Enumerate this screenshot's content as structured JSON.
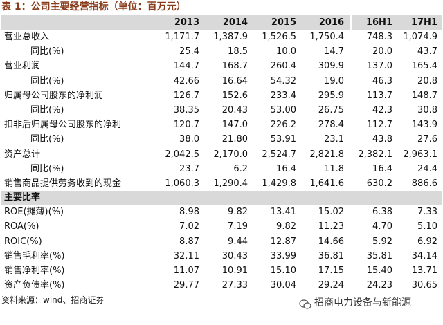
{
  "title": "表 1：公司主要经营指标（单位：百万元）",
  "table": {
    "header": [
      "2013",
      "2014",
      "2015",
      "2016",
      "16H1",
      "17H1"
    ],
    "rows": [
      {
        "label": "营业总收入",
        "values": [
          "1,171.7",
          "1,387.9",
          "1,526.5",
          "1,750.4",
          "748.3",
          "1,074.9"
        ],
        "children": [
          {
            "label": "同比(%)",
            "values": [
              "25.4",
              "18.5",
              "10.0",
              "14.7",
              "20.0",
              "43.7"
            ]
          }
        ]
      },
      {
        "label": "营业利润",
        "values": [
          "144.7",
          "168.7",
          "260.4",
          "309.9",
          "137.0",
          "165.4"
        ],
        "children": [
          {
            "label": "同比(%)",
            "values": [
              "42.66",
              "16.64",
              "54.32",
              "19.0",
              "46.3",
              "20.8"
            ]
          }
        ]
      },
      {
        "label": "归属母公司股东的净利润",
        "values": [
          "126.7",
          "152.6",
          "233.4",
          "295.9",
          "113.7",
          "148.7"
        ],
        "children": [
          {
            "label": "同比(%)",
            "values": [
              "38.35",
              "20.43",
              "53.00",
              "26.75",
              "42.3",
              "30.8"
            ]
          }
        ]
      },
      {
        "label": "扣非后归属母公司股东的净利",
        "values": [
          "120.7",
          "147.0",
          "226.2",
          "278.4",
          "112.7",
          "143.9"
        ],
        "children": [
          {
            "label": "同比(%)",
            "values": [
              "38.0",
              "21.80",
              "53.91",
              "23.1",
              "43.8",
              "27.6"
            ]
          }
        ]
      },
      {
        "label": "资产总计",
        "values": [
          "2,042.5",
          "2,170.0",
          "2,524.7",
          "2,821.8",
          "2,382.1",
          "2,963.1"
        ],
        "children": [
          {
            "label": "同比(%)",
            "values": [
              "23.7",
              "6.2",
              "16.4",
              "11.8",
              "16.4",
              "24.4"
            ]
          }
        ]
      },
      {
        "label": "销售商品提供劳务收到的现金",
        "values": [
          "1,060.3",
          "1,290.4",
          "1,429.8",
          "1,641.6",
          "630.2",
          "886.6"
        ],
        "children": []
      }
    ],
    "section": {
      "title": "主要比率",
      "rows": [
        {
          "label": "ROE(摊薄)(%)",
          "values": [
            "8.98",
            "9.82",
            "13.41",
            "15.02",
            "6.38",
            "7.33"
          ]
        },
        {
          "label": "ROA(%)",
          "values": [
            "7.02",
            "7.19",
            "9.82",
            "11.23",
            "4.70",
            "5.10"
          ]
        },
        {
          "label": "ROIC(%)",
          "values": [
            "8.87",
            "9.44",
            "12.87",
            "14.66",
            "5.92",
            "6.92"
          ]
        },
        {
          "label": "销售毛利率(%)",
          "values": [
            "32.11",
            "30.43",
            "33.99",
            "36.81",
            "35.81",
            "34.14"
          ]
        },
        {
          "label": "销售净利率(%)",
          "values": [
            "11.07",
            "10.91",
            "15.10",
            "17.15",
            "15.40",
            "13.71"
          ]
        },
        {
          "label": "资产负债率(%)",
          "values": [
            "29.77",
            "27.33",
            "30.04",
            "29.24",
            "24.23",
            "30.65"
          ]
        }
      ]
    }
  },
  "source": "资料来源：wind、招商证券",
  "watermark": "招商电力设备与新能源"
}
